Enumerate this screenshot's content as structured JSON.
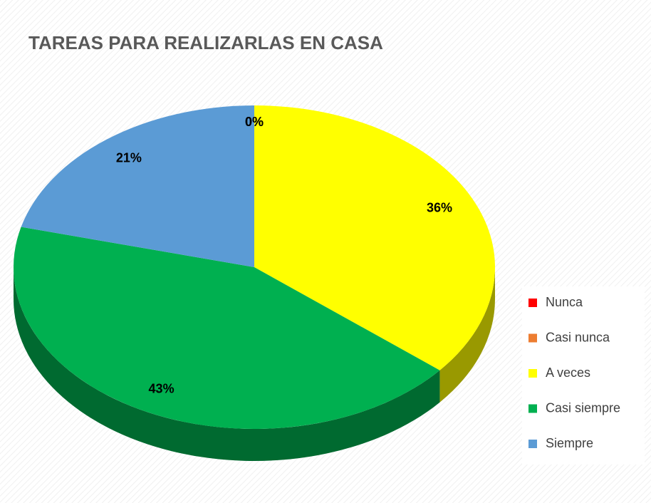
{
  "chart_data": {
    "type": "pie",
    "title": "TAREAS PARA REALIZARLAS EN CASA",
    "categories": [
      "Nunca",
      "Casi nunca",
      "A veces",
      "Casi siempre",
      "Siempre"
    ],
    "values": [
      0,
      0,
      36,
      43,
      21
    ],
    "value_labels": [
      "0%",
      "0%",
      "36%",
      "43%",
      "21%"
    ],
    "colors": [
      "#ff0000",
      "#ed7d31",
      "#ffff00",
      "#00b050",
      "#5b9bd5"
    ],
    "legend": "right"
  }
}
